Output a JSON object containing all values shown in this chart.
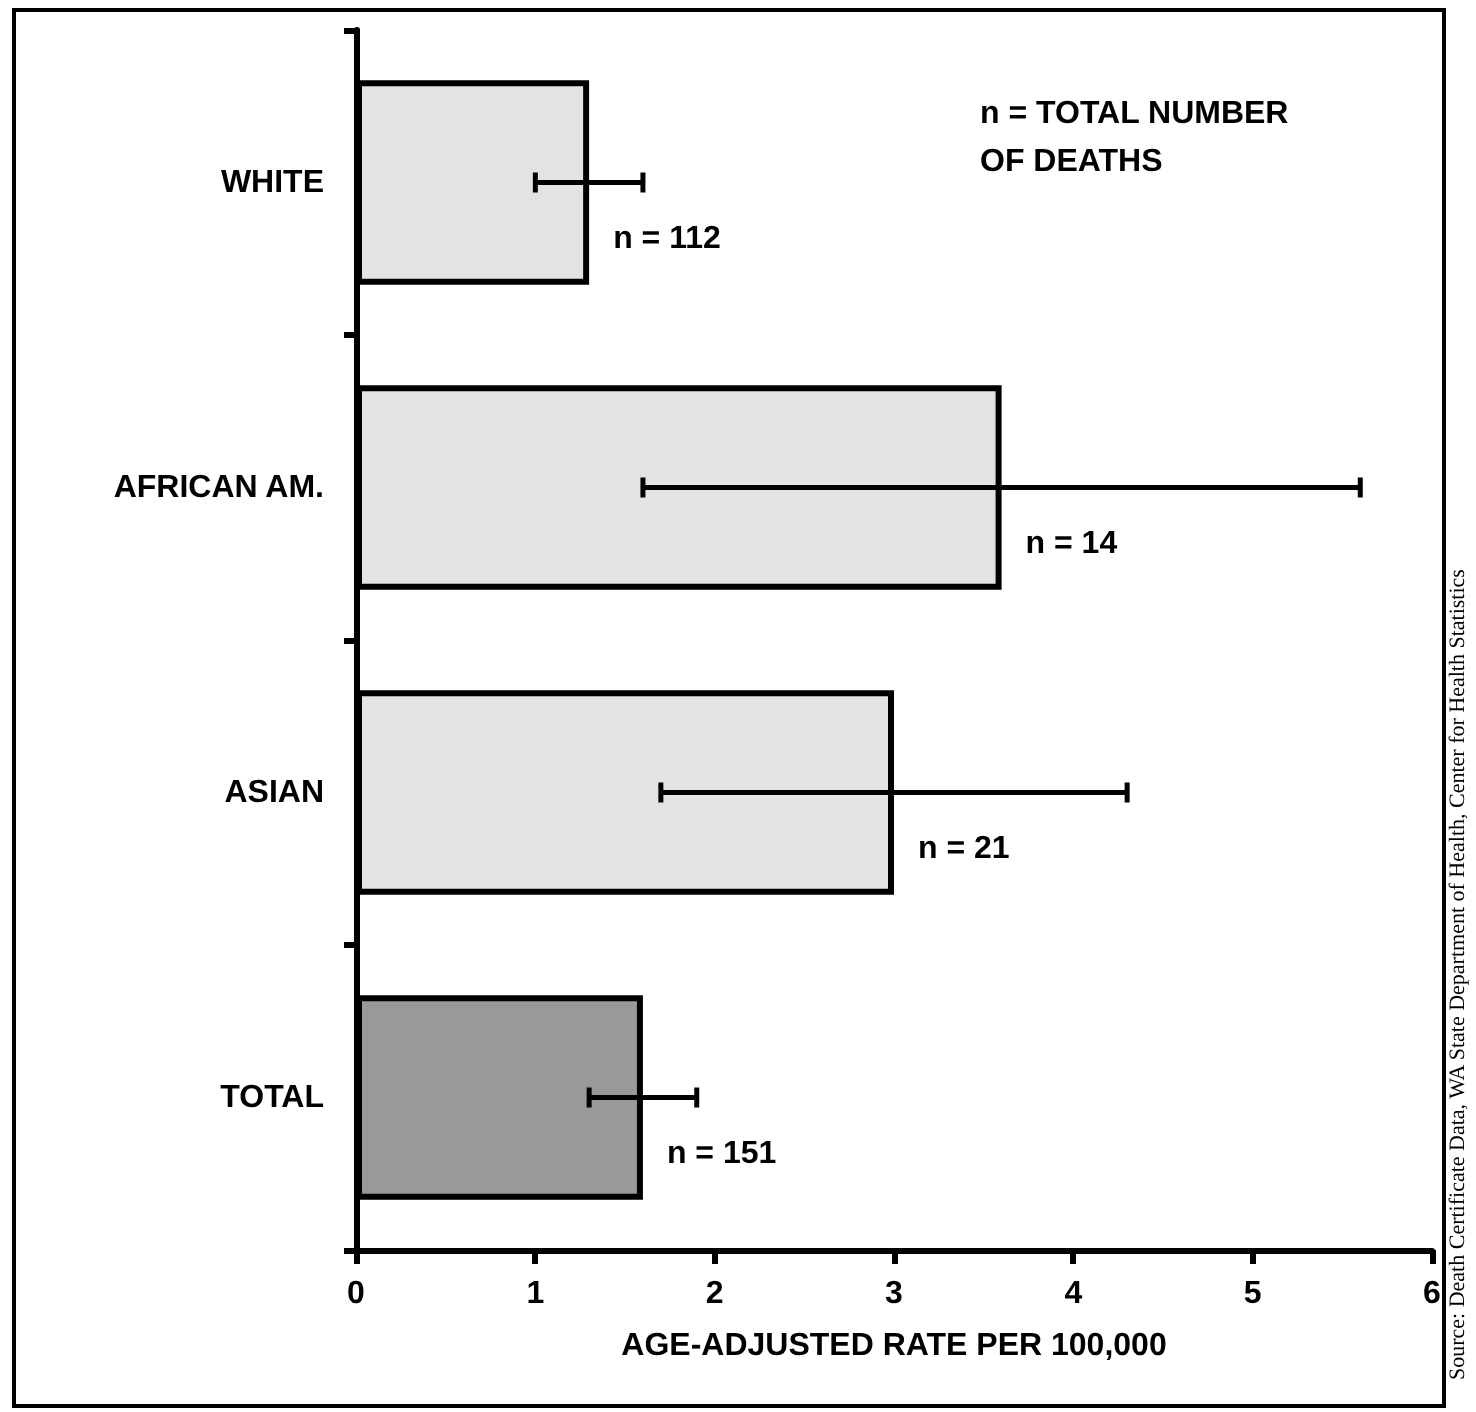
{
  "chart_data": {
    "type": "bar",
    "orientation": "horizontal",
    "xlabel": "AGE-ADJUSTED RATE PER 100,000",
    "categories": [
      "WHITE",
      "AFRICAN AM.",
      "ASIAN",
      "TOTAL"
    ],
    "values": [
      1.3,
      3.6,
      3.0,
      1.6
    ],
    "colors": [
      "#e3e3e3",
      "#e3e3e3",
      "#e3e3e3",
      "#999999"
    ],
    "errors": [
      [
        1.0,
        1.6
      ],
      [
        1.6,
        5.6
      ],
      [
        1.7,
        4.3
      ],
      [
        1.3,
        1.9
      ]
    ],
    "xlim": [
      0,
      6
    ],
    "xticks": [
      0,
      1,
      2,
      3,
      4,
      5,
      6
    ],
    "grid": false,
    "annotations": [
      {
        "text": "n = 112",
        "x": 1.3,
        "y": "WHITE"
      },
      {
        "text": "n = 14",
        "x": 3.6,
        "y": "AFRICAN AM."
      },
      {
        "text": "n = 21",
        "x": 3.0,
        "y": "ASIAN"
      },
      {
        "text": "n = 151",
        "x": 1.6,
        "y": "TOTAL"
      },
      "n = TOTAL NUMBER OF DEATHS",
      "Source: Death Certificate Data, WA State Department of Health, Center for Health Statistics"
    ]
  }
}
